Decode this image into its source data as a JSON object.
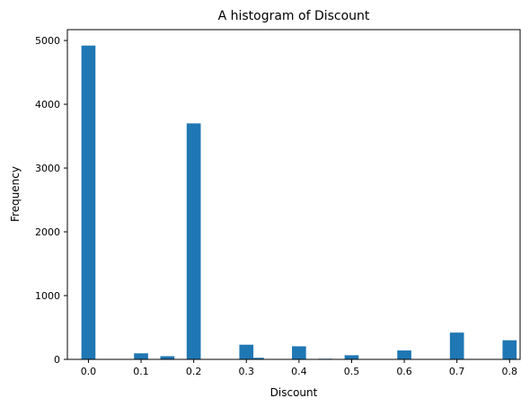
{
  "chart_data": {
    "type": "bar",
    "title": "A histogram of Discount",
    "xlabel": "Discount",
    "ylabel": "Frequency",
    "xlim": [
      -0.04,
      0.82
    ],
    "ylim": [
      0,
      5170
    ],
    "bar_width": 0.0267,
    "bar_color": "#1f77b4",
    "grid": false,
    "x_ticks": [
      {
        "value": 0.0,
        "label": "0.0"
      },
      {
        "value": 0.1,
        "label": "0.1"
      },
      {
        "value": 0.2,
        "label": "0.2"
      },
      {
        "value": 0.3,
        "label": "0.3"
      },
      {
        "value": 0.4,
        "label": "0.4"
      },
      {
        "value": 0.5,
        "label": "0.5"
      },
      {
        "value": 0.6,
        "label": "0.6"
      },
      {
        "value": 0.7,
        "label": "0.7"
      },
      {
        "value": 0.8,
        "label": "0.8"
      }
    ],
    "y_ticks": [
      {
        "value": 0,
        "label": "0"
      },
      {
        "value": 1000,
        "label": "1000"
      },
      {
        "value": 2000,
        "label": "2000"
      },
      {
        "value": 3000,
        "label": "3000"
      },
      {
        "value": 4000,
        "label": "4000"
      },
      {
        "value": 5000,
        "label": "5000"
      }
    ],
    "bins": [
      {
        "x": 0.0,
        "value": 4920
      },
      {
        "x": 0.1,
        "value": 95
      },
      {
        "x": 0.15,
        "value": 50
      },
      {
        "x": 0.2,
        "value": 3700
      },
      {
        "x": 0.3,
        "value": 230
      },
      {
        "x": 0.32,
        "value": 25
      },
      {
        "x": 0.4,
        "value": 205
      },
      {
        "x": 0.45,
        "value": 10
      },
      {
        "x": 0.5,
        "value": 65
      },
      {
        "x": 0.6,
        "value": 140
      },
      {
        "x": 0.7,
        "value": 420
      },
      {
        "x": 0.8,
        "value": 300
      }
    ]
  }
}
